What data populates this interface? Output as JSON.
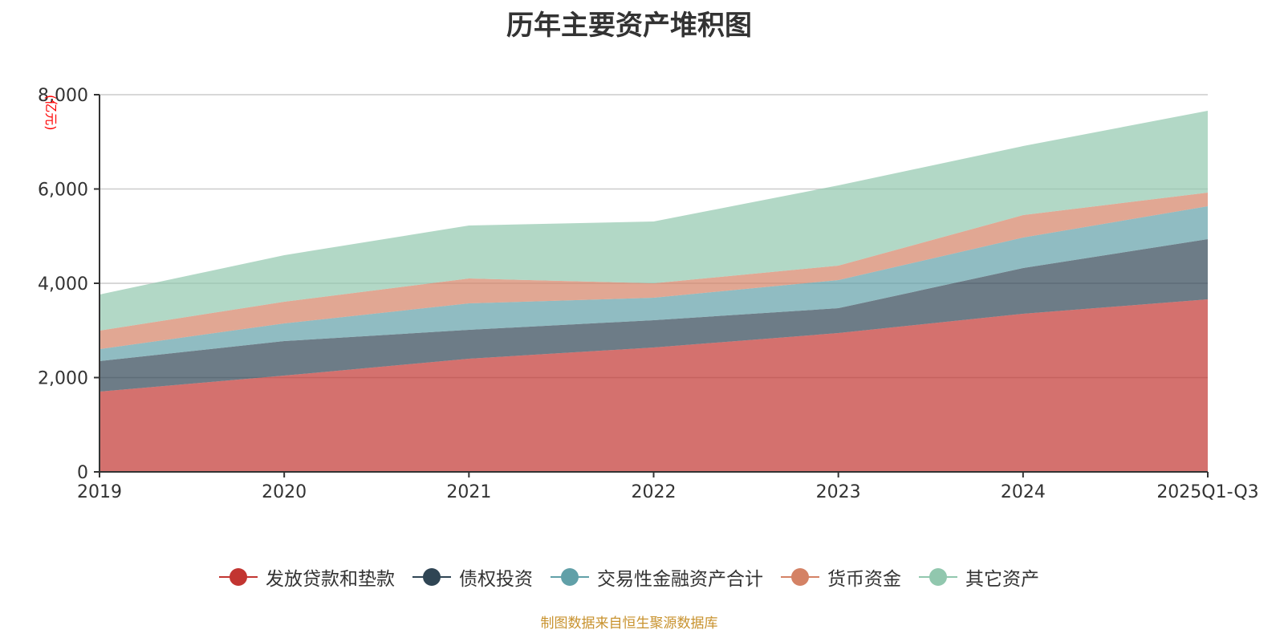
{
  "chart_data": {
    "type": "area",
    "stacked": true,
    "title": "历年主要资产堆积图",
    "unit_label": "(亿元)",
    "xlabel": "",
    "ylabel": "(亿元)",
    "categories": [
      "2019",
      "2020",
      "2021",
      "2022",
      "2023",
      "2024",
      "2025Q1-Q3"
    ],
    "ylim": [
      0,
      8000
    ],
    "yticks": [
      0,
      2000,
      4000,
      6000,
      8000
    ],
    "ytick_labels": [
      "0",
      "2,000",
      "4,000",
      "6,000",
      "8,000"
    ],
    "grid": true,
    "legend_position": "bottom",
    "series": [
      {
        "name": "发放贷款和垫款",
        "color": "#c23531",
        "values": [
          1702,
          2042,
          2400,
          2638,
          2944,
          3353,
          3659
        ]
      },
      {
        "name": "债权投资",
        "color": "#2f4554",
        "values": [
          647,
          732,
          613,
          579,
          528,
          970,
          1277
        ]
      },
      {
        "name": "交易性金融资产合计",
        "color": "#61a0a8",
        "values": [
          255,
          375,
          561,
          476,
          596,
          647,
          698
        ]
      },
      {
        "name": "货币资金",
        "color": "#d48265",
        "values": [
          392,
          459,
          528,
          307,
          306,
          476,
          289
        ]
      },
      {
        "name": "其它资产",
        "color": "#91c7ae",
        "values": [
          765,
          988,
          1123,
          1310,
          1702,
          1464,
          1736
        ]
      }
    ],
    "source": "制图数据来自恒生聚源数据库"
  }
}
